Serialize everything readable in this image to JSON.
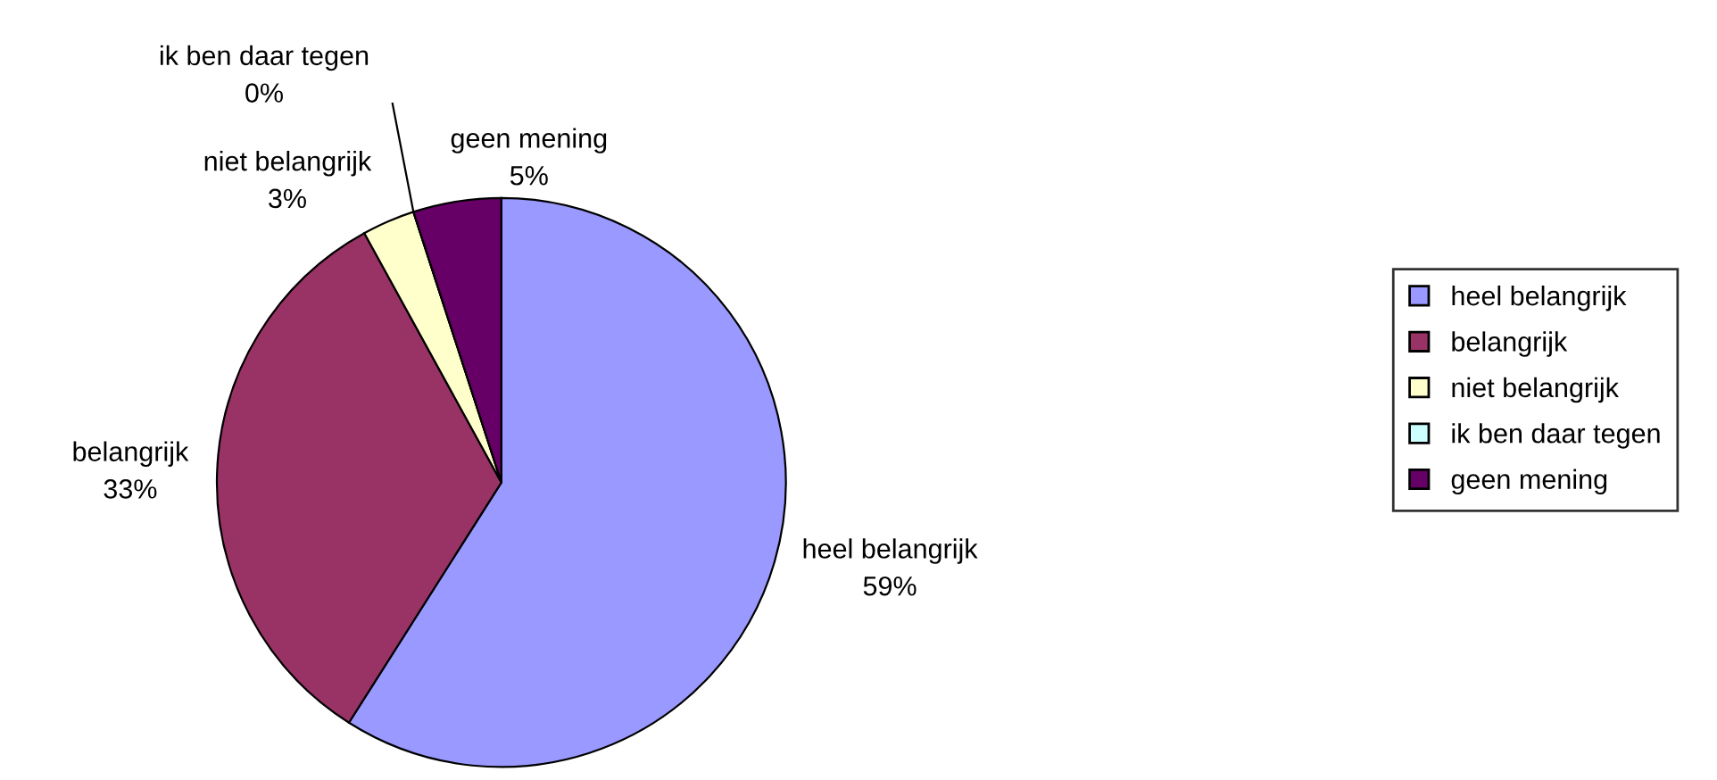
{
  "chart_data": {
    "type": "pie",
    "categories": [
      "heel belangrijk",
      "belangrijk",
      "niet belangrijk",
      "ik ben daar tegen",
      "geen mening"
    ],
    "values": [
      59,
      33,
      3,
      0,
      5
    ],
    "colors": [
      "#9999ff",
      "#993366",
      "#ffffcc",
      "#ccffff",
      "#660066"
    ],
    "value_labels": [
      "59%",
      "33%",
      "3%",
      "0%",
      "5%"
    ],
    "legend": "right"
  }
}
